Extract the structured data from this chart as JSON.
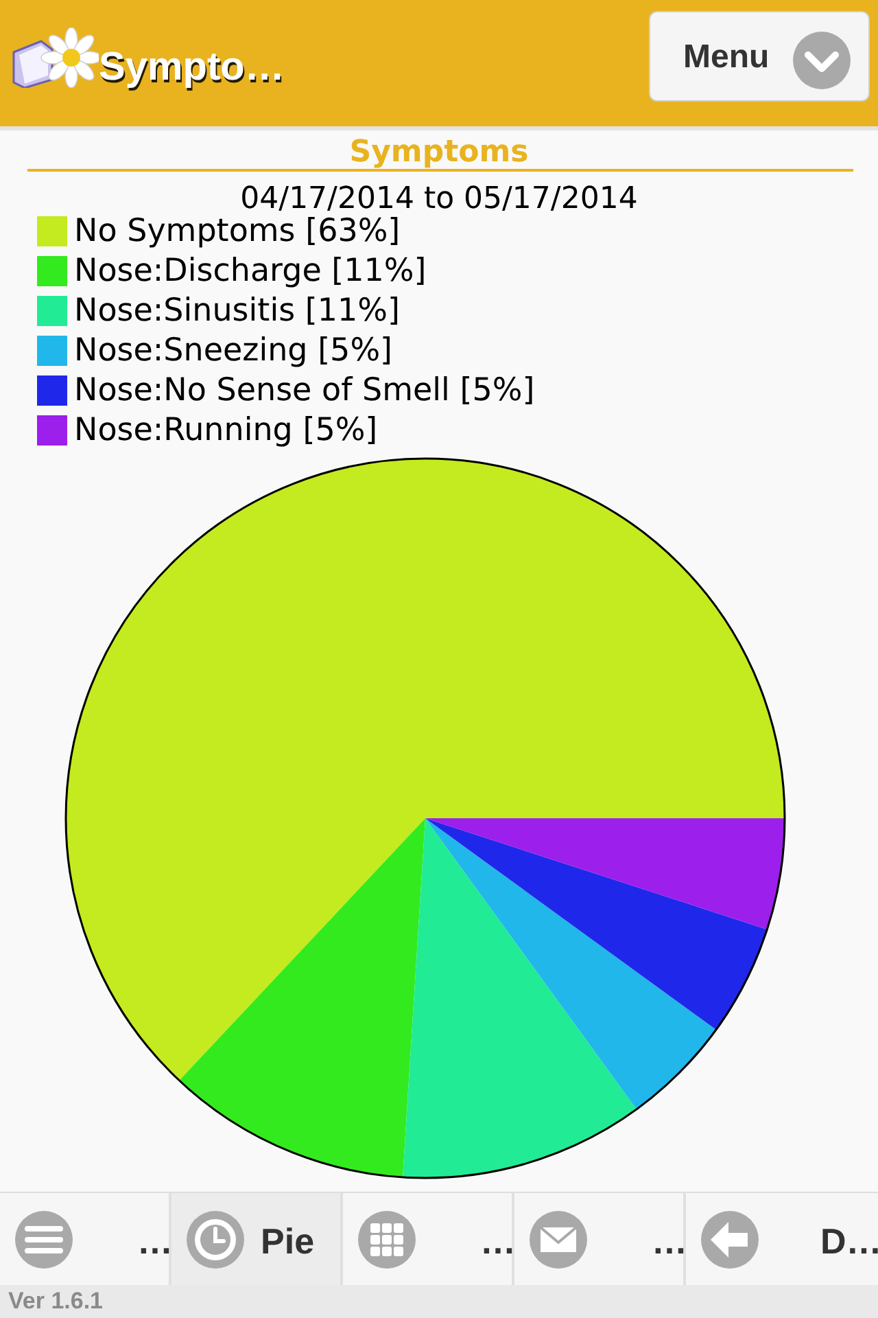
{
  "chart_data": {
    "type": "pie",
    "title": "Symptoms",
    "subtitle": "04/17/2014 to 05/17/2014",
    "categories": [
      "No Symptoms [63%]",
      "Nose:Discharge [11%]",
      "Nose:Sinusitis [11%]",
      "Nose:Sneezing [5%]",
      "Nose:No Sense of Smell [5%]",
      "Nose:Running [5%]"
    ],
    "values": [
      63,
      11,
      11,
      5,
      5,
      5
    ],
    "colors": [
      "#c3eb1f",
      "#33ea1e",
      "#22eb95",
      "#21b7ea",
      "#1f28ea",
      "#9c1feb"
    ],
    "legend": "top left",
    "annotations": [
      "Sympto…",
      "Menu",
      "…",
      "Pie",
      "…",
      "…",
      "D…",
      "Ver 1.6.1"
    ]
  }
}
